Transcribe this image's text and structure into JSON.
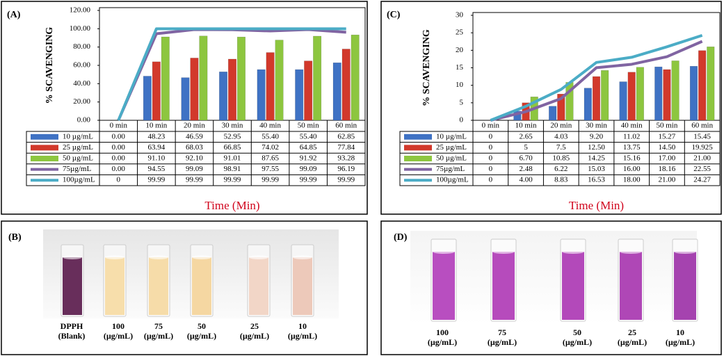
{
  "chart_data": [
    {
      "type": "bar",
      "panel_label": "(A)",
      "y_label": "% SCAVENGING",
      "x_label": "Time (Min)",
      "categories": [
        "0 min",
        "10 min",
        "20 min",
        "30 min",
        "40 min",
        "50 min",
        "60 min"
      ],
      "ylim": [
        0,
        120
      ],
      "yticks": [
        {
          "value": 0,
          "label": "0.00"
        },
        {
          "value": 20,
          "label": "20.00"
        },
        {
          "value": 40,
          "label": "40.00"
        },
        {
          "value": 60,
          "label": "60.00"
        },
        {
          "value": 80,
          "label": "80.00"
        },
        {
          "value": 100,
          "label": "100.00"
        },
        {
          "value": 120,
          "label": "120.00"
        }
      ],
      "grid": false,
      "series": [
        {
          "name": "10 µg/mL",
          "color": "#3f72c4",
          "mark": "bar",
          "values": [
            0,
            48.23,
            46.59,
            52.95,
            55.4,
            55.4,
            62.85
          ],
          "value_labels": [
            "0.00",
            "48.23",
            "46.59",
            "52.95",
            "55.40",
            "55.40",
            "62.85"
          ]
        },
        {
          "name": "25 µg/mL",
          "color": "#d2392b",
          "mark": "bar",
          "values": [
            0,
            63.94,
            68.03,
            66.85,
            74.02,
            64.85,
            77.84
          ],
          "value_labels": [
            "0.00",
            "63.94",
            "68.03",
            "66.85",
            "74.02",
            "64.85",
            "77.84"
          ]
        },
        {
          "name": "50 µg/mL",
          "color": "#8dc63f",
          "mark": "bar",
          "values": [
            0,
            91.1,
            92.1,
            91.01,
            87.65,
            91.92,
            93.28
          ],
          "value_labels": [
            "0.00",
            "91.10",
            "92.10",
            "91.01",
            "87.65",
            "91.92",
            "93.28"
          ]
        },
        {
          "name": "75µg/mL",
          "color": "#8064a2",
          "mark": "line",
          "values": [
            0,
            94.55,
            99.09,
            98.91,
            97.55,
            99.09,
            96.19
          ],
          "value_labels": [
            "0.00",
            "94.55",
            "99.09",
            "98.91",
            "97.55",
            "99.09",
            "96.19"
          ]
        },
        {
          "name": "100µg/mL",
          "color": "#4bacc6",
          "mark": "line",
          "values": [
            0,
            99.99,
            99.99,
            99.99,
            99.99,
            99.99,
            99.99
          ],
          "value_labels": [
            "0",
            "99.99",
            "99.99",
            "99.99",
            "99.99",
            "99.99",
            "99.99"
          ]
        }
      ]
    },
    {
      "type": "bar",
      "panel_label": "(C)",
      "y_label": "% SCAVENGING",
      "x_label": "Time (Min)",
      "categories": [
        "0 min",
        "10 min",
        "20 min",
        "30 min",
        "40 min",
        "50 min",
        "60 min"
      ],
      "ylim": [
        0,
        30
      ],
      "yticks": [
        0,
        5,
        10,
        15,
        20,
        25,
        30
      ],
      "grid": false,
      "series": [
        {
          "name": "10 µg/mL",
          "color": "#3f72c4",
          "mark": "bar",
          "values": [
            0,
            2.65,
            4.03,
            9.2,
            11.02,
            15.27,
            15.45
          ],
          "value_labels": [
            "0",
            "2.65",
            "4.03",
            "9.20",
            "11.02",
            "15.27",
            "15.45"
          ]
        },
        {
          "name": "25 µg/mL",
          "color": "#d2392b",
          "mark": "bar",
          "values": [
            0,
            5,
            7.5,
            12.5,
            13.75,
            14.5,
            19.925
          ],
          "value_labels": [
            "0",
            "5",
            "7.5",
            "12.50",
            "13.75",
            "14.50",
            "19.925"
          ]
        },
        {
          "name": "50 µg/mL",
          "color": "#8dc63f",
          "mark": "bar",
          "values": [
            0,
            6.7,
            10.85,
            14.25,
            15.16,
            17.0,
            21.0
          ],
          "value_labels": [
            "0",
            "6.70",
            "10.85",
            "14.25",
            "15.16",
            "17.00",
            "21.00"
          ]
        },
        {
          "name": "75µg/mL",
          "color": "#8064a2",
          "mark": "line",
          "values": [
            0,
            2.48,
            6.22,
            15.03,
            16.0,
            18.16,
            22.55
          ],
          "value_labels": [
            "0",
            "2.48",
            "6.22",
            "15.03",
            "16.00",
            "18.16",
            "22.55"
          ]
        },
        {
          "name": "100µg/mL",
          "color": "#4bacc6",
          "mark": "line",
          "values": [
            0,
            4.0,
            8.83,
            16.53,
            18.0,
            21.0,
            24.27
          ],
          "value_labels": [
            "0",
            "4.00",
            "8.83",
            "16.53",
            "18.00",
            "21.00",
            "24.27"
          ]
        }
      ]
    }
  ],
  "photos": [
    {
      "label": "(B)",
      "captions": [
        [
          "DPPH",
          "(Blank)"
        ],
        [
          "100",
          "(µg/mL)"
        ],
        [
          "75",
          "(µg/mL)"
        ],
        [
          "50",
          "(µg/mL)"
        ],
        [
          "25",
          "(µg/mL)"
        ],
        [
          "10",
          "(µg/mL)"
        ]
      ]
    },
    {
      "label": "(D)",
      "captions": [
        [
          "100",
          "(µg/mL)"
        ],
        [
          "75",
          "(µg/mL)"
        ],
        [
          "50",
          "(µg/mL)"
        ],
        [
          "25",
          "(µg/mL)"
        ],
        [
          "10",
          "(µg/mL)"
        ]
      ]
    }
  ]
}
